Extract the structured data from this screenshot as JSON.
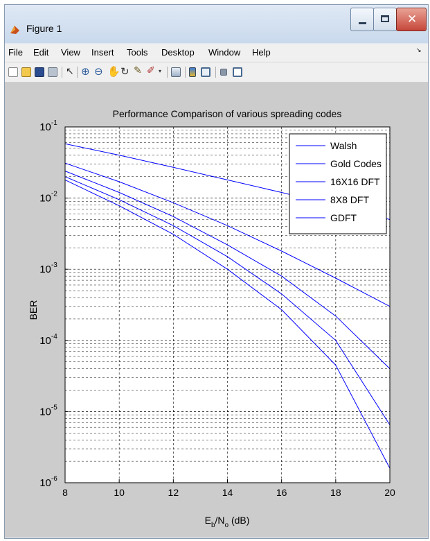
{
  "window": {
    "title": "Figure 1",
    "icons": {
      "app": "matlab-figure-icon",
      "minimize": "minimize-icon",
      "maximize": "maximize-icon",
      "close": "close-icon"
    }
  },
  "menubar": {
    "items": [
      "File",
      "Edit",
      "View",
      "Insert",
      "Tools",
      "Desktop",
      "Window",
      "Help"
    ]
  },
  "toolbar": {
    "icons": [
      "new-figure-icon",
      "open-file-icon",
      "save-icon",
      "print-icon",
      "edit-plot-icon",
      "zoom-in-icon",
      "zoom-out-icon",
      "pan-icon",
      "rotate-3d-icon",
      "data-cursor-icon",
      "brush-icon",
      "link-plot-icon",
      "insert-colorbar-icon",
      "insert-legend-icon",
      "hide-plot-tools-icon",
      "show-plot-tools-icon"
    ]
  },
  "chart_data": {
    "type": "line",
    "title": "Performance Comparison of various spreading codes",
    "xlabel": "E_b/N_o (dB)",
    "xlabel_parts": {
      "main": "E",
      "sub1": "b",
      "mid": "/N",
      "sub2": "o",
      "tail": " (dB)"
    },
    "ylabel": "BER",
    "xlim": [
      8,
      20
    ],
    "ylim": [
      1e-06,
      0.1
    ],
    "yscale": "log",
    "grid": true,
    "legend_position": "top-right",
    "x_ticks": [
      "8",
      "10",
      "12",
      "14",
      "16",
      "18",
      "20"
    ],
    "x_tick_values": [
      8,
      10,
      12,
      14,
      16,
      18,
      20
    ],
    "y_ticks": [
      {
        "value": 1e-06,
        "base": "10",
        "exp": "-6"
      },
      {
        "value": 1e-05,
        "base": "10",
        "exp": "-5"
      },
      {
        "value": 0.0001,
        "base": "10",
        "exp": "-4"
      },
      {
        "value": 0.001,
        "base": "10",
        "exp": "-3"
      },
      {
        "value": 0.01,
        "base": "10",
        "exp": "-2"
      },
      {
        "value": 0.1,
        "base": "10",
        "exp": "-1"
      }
    ],
    "color": "#0000ff",
    "series": [
      {
        "name": "Walsh",
        "x": [
          8,
          10,
          12,
          14,
          16,
          18,
          20
        ],
        "y": [
          0.058,
          0.04,
          0.027,
          0.018,
          0.012,
          0.0078,
          0.005
        ]
      },
      {
        "name": "Gold Codes",
        "x": [
          8,
          10,
          12,
          14,
          16,
          18,
          20
        ],
        "y": [
          0.031,
          0.017,
          0.0086,
          0.0041,
          0.0018,
          0.00075,
          0.0003
        ]
      },
      {
        "name": "16X16 DFT",
        "x": [
          8,
          10,
          12,
          14,
          16,
          18,
          20
        ],
        "y": [
          0.024,
          0.012,
          0.0055,
          0.0022,
          0.0008,
          0.00022,
          4e-05
        ]
      },
      {
        "name": "8X8 DFT",
        "x": [
          8,
          10,
          12,
          14,
          16,
          18,
          20
        ],
        "y": [
          0.02,
          0.0095,
          0.0041,
          0.0015,
          0.00045,
          0.0001,
          6.5e-06
        ]
      },
      {
        "name": "GDFT",
        "x": [
          8,
          10,
          12,
          14,
          16,
          18,
          20
        ],
        "y": [
          0.018,
          0.0078,
          0.0031,
          0.001,
          0.00027,
          4.5e-05,
          1.6e-06
        ]
      }
    ]
  }
}
